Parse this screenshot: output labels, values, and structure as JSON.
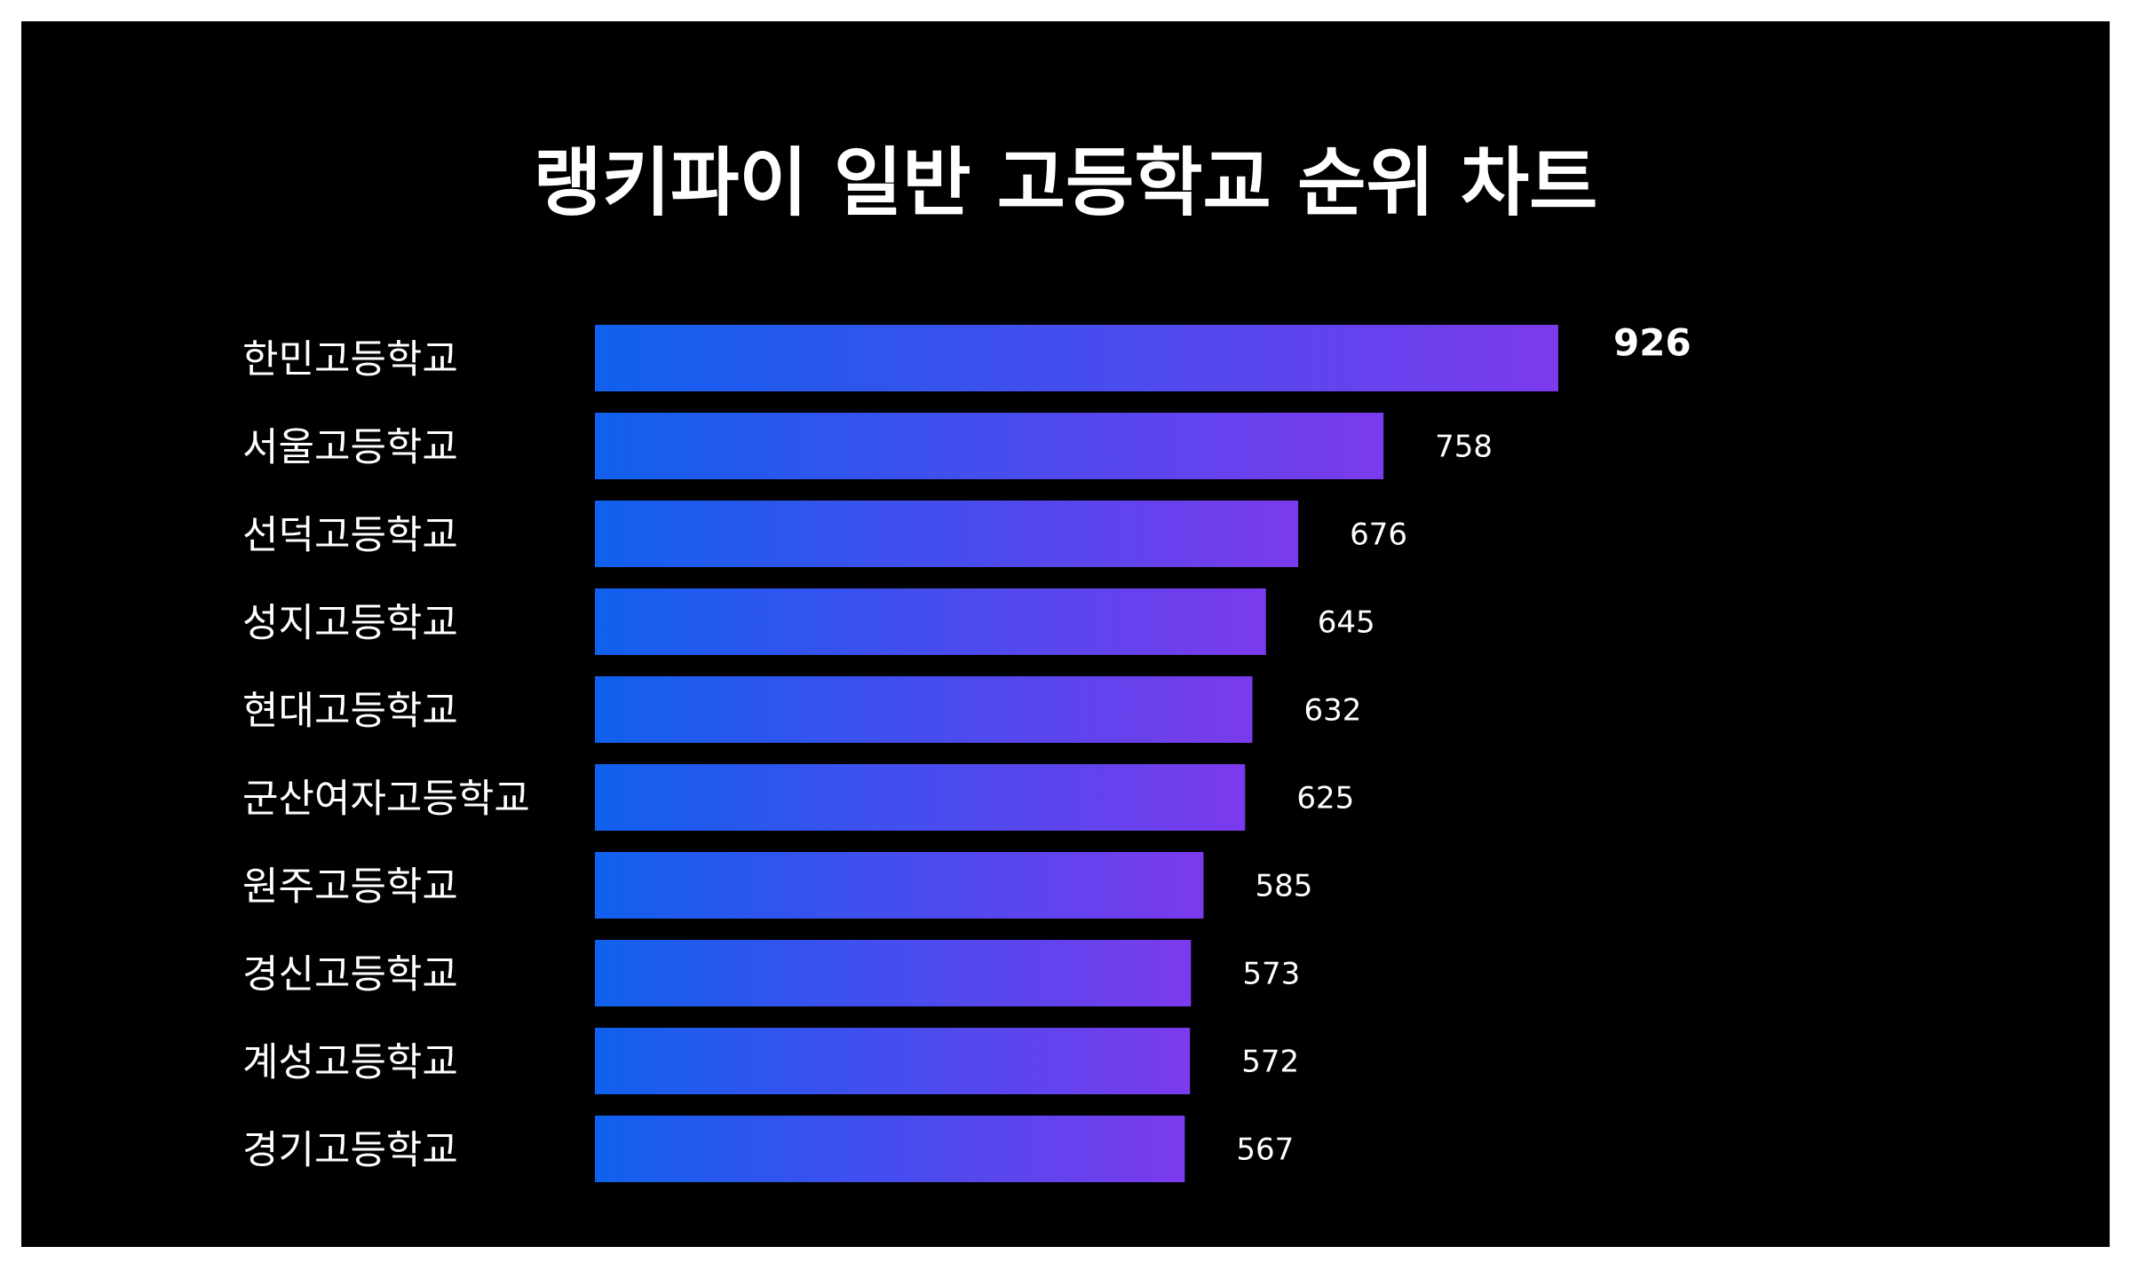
{
  "chart_data": {
    "type": "bar",
    "orientation": "horizontal",
    "title": "랭키파이 일반 고등학교 순위 차트",
    "categories": [
      "한민고등학교",
      "서울고등학교",
      "선덕고등학교",
      "성지고등학교",
      "현대고등학교",
      "군산여자고등학교",
      "원주고등학교",
      "경신고등학교",
      "계성고등학교",
      "경기고등학교"
    ],
    "values": [
      926,
      758,
      676,
      645,
      632,
      625,
      585,
      573,
      572,
      567
    ],
    "xlim": [
      0,
      926
    ],
    "grid": false,
    "legend": "none",
    "colors": {
      "background": "#000000",
      "frame": "#ffffff",
      "bar_start": "#1060ee",
      "bar_end": "#7b3aed",
      "text": "#ffffff"
    }
  }
}
